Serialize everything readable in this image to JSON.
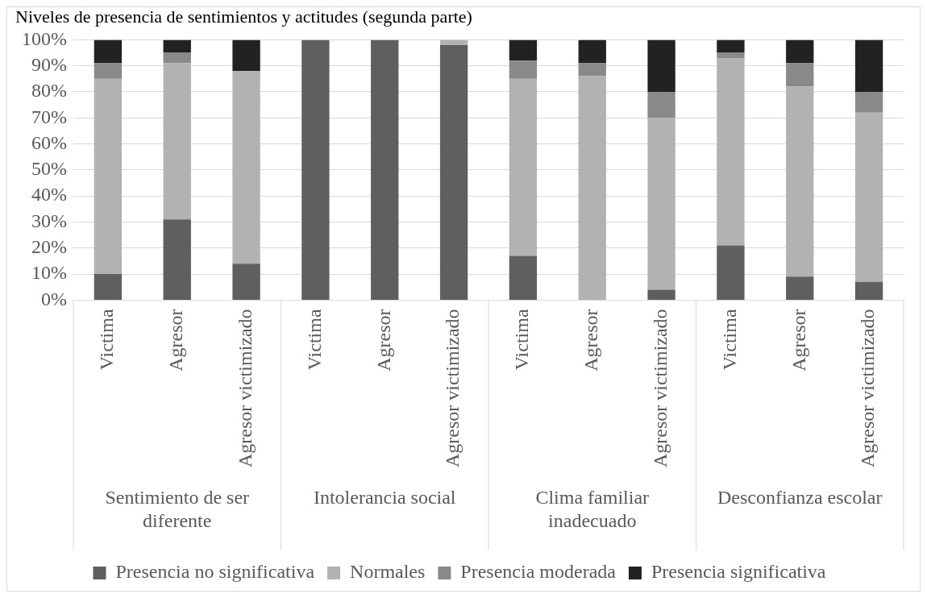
{
  "chart_data": {
    "type": "bar",
    "title": "Niveles de presencia de sentimientos y actitudes (segunda parte)",
    "categories": [
      "Victima",
      "Agresor",
      "Agresor victimizado",
      "Victima",
      "Agresor",
      "Agresor victimizado",
      "Victima",
      "Agresor",
      "Agresor victimizado",
      "Victima",
      "Agresor",
      "Agresor victimizado"
    ],
    "annotations": [
      "Sentimiento de ser diferente",
      "Intolerancia social",
      "Clima familiar inadecuado",
      "Desconfianza escolar"
    ],
    "stacked": true,
    "series": [
      {
        "name": "Presencia no significativa",
        "color": "#5f5f5f",
        "values": [
          10,
          31,
          14,
          100,
          100,
          98,
          17,
          0,
          4,
          21,
          9,
          7
        ]
      },
      {
        "name": "Normales",
        "color": "#b2b2b2",
        "values": [
          75,
          60,
          74,
          0,
          0,
          2,
          68,
          86,
          66,
          72,
          73,
          65
        ]
      },
      {
        "name": "Presencia moderada",
        "color": "#898989",
        "values": [
          6,
          4,
          0,
          0,
          0,
          0,
          7,
          5,
          10,
          2,
          9,
          8
        ]
      },
      {
        "name": "Presencia significativa",
        "color": "#222222",
        "values": [
          9,
          5,
          12,
          0,
          0,
          0,
          8,
          9,
          20,
          5,
          9,
          20
        ]
      }
    ],
    "ylim": [
      0,
      100
    ],
    "yticks": [
      {
        "value": 0,
        "label": "0%"
      },
      {
        "value": 10,
        "label": "10%"
      },
      {
        "value": 20,
        "label": "20%"
      },
      {
        "value": 30,
        "label": "30%"
      },
      {
        "value": 40,
        "label": "40%"
      },
      {
        "value": 50,
        "label": "50%"
      },
      {
        "value": 60,
        "label": "60%"
      },
      {
        "value": 70,
        "label": "70%"
      },
      {
        "value": 80,
        "label": "80%"
      },
      {
        "value": 90,
        "label": "90%"
      },
      {
        "value": 100,
        "label": "100%"
      }
    ],
    "grid": "y",
    "legend": "bottom"
  }
}
